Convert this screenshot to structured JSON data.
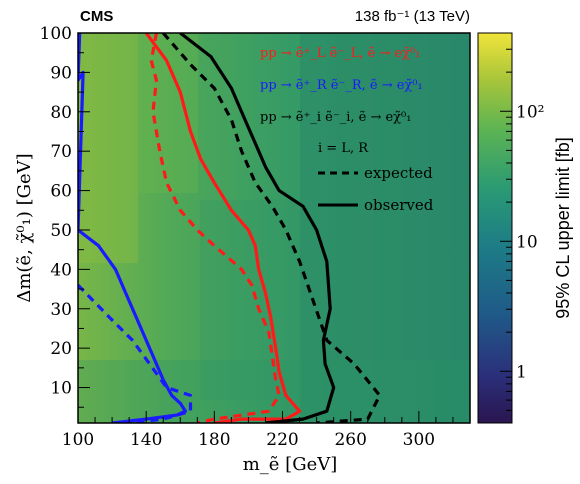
{
  "header": {
    "experiment": "CMS",
    "lumi": "138 fb⁻¹ (13 TeV)"
  },
  "legend": {
    "process_left": "pp → ẽ⁺_L ẽ⁻_L, ẽ → eχ̃⁰₁",
    "process_right": "pp → ẽ⁺_R ẽ⁻_R, ẽ → eχ̃⁰₁",
    "process_both": "pp → ẽ⁺_i ẽ⁻_i, ẽ → eχ̃⁰₁",
    "helicity_note": "i = L, R",
    "expected_label": "expected",
    "observed_label": "observed"
  },
  "colors": {
    "left": "#ff1a1a",
    "right": "#1a1aff",
    "both": "#000000"
  },
  "chart_data": {
    "type": "heatmap",
    "xlabel": "m_ẽ [GeV]",
    "ylabel": "Δm(ẽ, χ̃⁰₁) [GeV]",
    "zlabel": "95% CL upper limit [fb]",
    "xlim": [
      100,
      330
    ],
    "ylim": [
      1,
      100
    ],
    "zlim": [
      0.4,
      400
    ],
    "zscale": "log",
    "x_ticks": [
      "100",
      "140",
      "180",
      "220",
      "260",
      "300"
    ],
    "y_ticks": [
      "10",
      "20",
      "30",
      "40",
      "50",
      "60",
      "70",
      "80",
      "90",
      "100"
    ],
    "z_ticks": [
      "1",
      "10",
      "10²"
    ],
    "contours": [
      {
        "name": "L expected",
        "style": "dashed",
        "color": "#ff1a1a",
        "points": [
          [
            146,
            100
          ],
          [
            143,
            93
          ],
          [
            146,
            88
          ],
          [
            144,
            80
          ],
          [
            148,
            70
          ],
          [
            152,
            62
          ],
          [
            160,
            55
          ],
          [
            170,
            50
          ],
          [
            180,
            46
          ],
          [
            188,
            43
          ],
          [
            196,
            40
          ],
          [
            202,
            36
          ],
          [
            206,
            30
          ],
          [
            212,
            24
          ],
          [
            214,
            18
          ],
          [
            216,
            12
          ],
          [
            218,
            8
          ],
          [
            212,
            4
          ],
          [
            180,
            2
          ],
          [
            170,
            1
          ]
        ]
      },
      {
        "name": "L observed",
        "style": "solid",
        "color": "#ff1a1a",
        "points": [
          [
            140,
            100
          ],
          [
            152,
            93
          ],
          [
            160,
            85
          ],
          [
            166,
            75
          ],
          [
            172,
            68
          ],
          [
            180,
            62
          ],
          [
            190,
            55
          ],
          [
            200,
            50
          ],
          [
            204,
            46
          ],
          [
            206,
            40
          ],
          [
            210,
            34
          ],
          [
            213,
            28
          ],
          [
            216,
            20
          ],
          [
            218,
            14
          ],
          [
            222,
            8
          ],
          [
            230,
            4
          ],
          [
            222,
            2
          ],
          [
            196,
            2
          ],
          [
            180,
            1
          ]
        ]
      },
      {
        "name": "R expected",
        "style": "dashed",
        "color": "#1a1aff",
        "points": [
          [
            100,
            36
          ],
          [
            118,
            28
          ],
          [
            132,
            22
          ],
          [
            142,
            16
          ],
          [
            152,
            10
          ],
          [
            166,
            8
          ],
          [
            166,
            4
          ],
          [
            150,
            2
          ],
          [
            130,
            1
          ]
        ]
      },
      {
        "name": "R observed",
        "style": "solid",
        "color": "#1a1aff",
        "points": [
          [
            101,
            100
          ],
          [
            100,
            88
          ],
          [
            103,
            90
          ],
          [
            100,
            50
          ],
          [
            112,
            46
          ],
          [
            122,
            40
          ],
          [
            130,
            32
          ],
          [
            138,
            24
          ],
          [
            144,
            18
          ],
          [
            150,
            12
          ],
          [
            155,
            8
          ],
          [
            160,
            6
          ],
          [
            163,
            4
          ],
          [
            158,
            3
          ],
          [
            140,
            2
          ],
          [
            120,
            1
          ]
        ]
      },
      {
        "name": "L+R expected",
        "style": "dashed",
        "color": "#000000",
        "points": [
          [
            150,
            100
          ],
          [
            166,
            92
          ],
          [
            180,
            86
          ],
          [
            190,
            78
          ],
          [
            196,
            70
          ],
          [
            204,
            62
          ],
          [
            214,
            56
          ],
          [
            222,
            50
          ],
          [
            230,
            42
          ],
          [
            238,
            32
          ],
          [
            246,
            22
          ],
          [
            262,
            16
          ],
          [
            277,
            8
          ],
          [
            270,
            2
          ],
          [
            240,
            1
          ]
        ]
      },
      {
        "name": "L+R observed",
        "style": "solid",
        "color": "#000000",
        "points": [
          [
            160,
            100
          ],
          [
            178,
            94
          ],
          [
            190,
            86
          ],
          [
            198,
            78
          ],
          [
            204,
            72
          ],
          [
            210,
            66
          ],
          [
            218,
            60
          ],
          [
            232,
            56
          ],
          [
            240,
            50
          ],
          [
            246,
            42
          ],
          [
            248,
            30
          ],
          [
            244,
            22
          ],
          [
            245,
            16
          ],
          [
            250,
            10
          ],
          [
            246,
            4
          ],
          [
            232,
            2
          ],
          [
            210,
            1
          ]
        ]
      }
    ]
  }
}
